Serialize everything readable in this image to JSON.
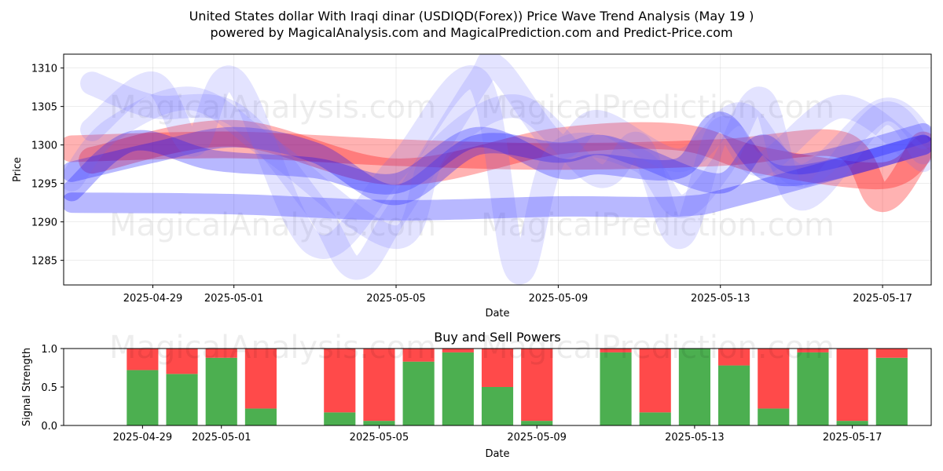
{
  "title_line1": "United States dollar With Iraqi dinar (USDIQD(Forex)) Price Wave Trend Analysis (May 19 )",
  "title_line2": "powered by MagicalAnalysis.com and MagicalPrediction.com and Predict-Price.com",
  "watermarks": [
    "MagicalAnalysis.com",
    "MagicalPrediction.com"
  ],
  "colors": {
    "red_band": "#ff0000",
    "blue_band": "#0000ff",
    "light_blue_band": "#6666ff",
    "buy": "#4caf50",
    "sell": "#ff4a4a"
  },
  "chart_data": [
    {
      "type": "line",
      "title": "",
      "xlabel": "Date",
      "ylabel": "Price",
      "ylim": [
        1281.8,
        1311.8
      ],
      "yticks": [
        1285,
        1290,
        1295,
        1300,
        1305,
        1310
      ],
      "x_tick_labels": [
        "2025-04-29",
        "2025-05-01",
        "2025-05-05",
        "2025-05-09",
        "2025-05-13",
        "2025-05-17"
      ],
      "x_tick_days": [
        2,
        4,
        8,
        12,
        16,
        20
      ],
      "x_range_days": [
        -0.2,
        21.2
      ],
      "grid": true,
      "series": [
        {
          "name": "red-wave-1",
          "color": "red",
          "days": [
            0,
            4,
            8,
            12,
            16,
            19,
            20,
            21
          ],
          "values": [
            1299.5,
            1300.0,
            1299.0,
            1298.5,
            1299.0,
            1300.0,
            1293.0,
            1300.0
          ]
        },
        {
          "name": "red-wave-2",
          "color": "red",
          "days": [
            0.5,
            4,
            8,
            12,
            15,
            17,
            20,
            21
          ],
          "values": [
            1298.0,
            1301.5,
            1296.5,
            1300.5,
            1301.0,
            1298.0,
            1296.0,
            1299.5
          ]
        },
        {
          "name": "blue-lower-band",
          "color": "blue",
          "days": [
            0,
            4,
            8,
            12,
            15,
            16.5,
            21
          ],
          "values": [
            1292.5,
            1292.3,
            1291.5,
            1292.0,
            1292.0,
            1293.5,
            1300.0
          ]
        },
        {
          "name": "blue-main-wave",
          "color": "blue",
          "days": [
            0,
            2,
            4,
            6,
            8,
            10,
            12,
            13,
            14,
            16,
            17,
            18,
            21
          ],
          "values": [
            1296.5,
            1299.0,
            1301.0,
            1299.0,
            1293.5,
            1300.0,
            1299.0,
            1300.0,
            1298.5,
            1295.0,
            1300.0,
            1297.5,
            1301.5
          ]
        },
        {
          "name": "blue-wave-2",
          "color": "blue",
          "days": [
            0,
            1.5,
            3.5,
            6,
            8,
            10,
            12,
            13,
            15,
            16,
            17.5,
            21
          ],
          "values": [
            1294.0,
            1300.5,
            1298.0,
            1297.0,
            1295.0,
            1301.0,
            1297.0,
            1297.5,
            1297.0,
            1303.0,
            1296.0,
            1300.0
          ]
        },
        {
          "name": "blue-wave-3",
          "color": "light",
          "days": [
            0.5,
            2,
            3,
            4,
            6,
            8,
            10,
            11,
            12,
            14,
            15,
            16,
            17,
            18,
            20,
            21
          ],
          "values": [
            1302.0,
            1308.0,
            1300.0,
            1308.5,
            1287.0,
            1297.0,
            1308.5,
            1283.5,
            1299.0,
            1298.0,
            1292.0,
            1297.0,
            1306.0,
            1293.0,
            1304.0,
            1299.0
          ]
        },
        {
          "name": "blue-wave-4",
          "color": "light",
          "days": [
            0.5,
            2,
            4,
            6,
            7,
            8,
            10,
            10.5,
            12,
            13,
            15,
            16.5,
            18,
            20,
            21
          ],
          "values": [
            1308.0,
            1305.0,
            1304.0,
            1292.0,
            1284.0,
            1291.0,
            1308.0,
            1310.0,
            1300.0,
            1303.0,
            1298.0,
            1304.0,
            1296.0,
            1304.5,
            1301.0
          ]
        },
        {
          "name": "blue-wave-5",
          "color": "light",
          "days": [
            0,
            1,
            3,
            5,
            8,
            9,
            11,
            13,
            14,
            15,
            16,
            17,
            19,
            21
          ],
          "values": [
            1295.5,
            1302.0,
            1306.0,
            1299.0,
            1288.0,
            1299.0,
            1305.0,
            1296.0,
            1300.0,
            1288.0,
            1302.0,
            1297.5,
            1305.0,
            1298.0
          ]
        }
      ]
    },
    {
      "type": "bar",
      "title": "Buy and Sell Powers",
      "xlabel": "Date",
      "ylabel": "Signal Strength",
      "ylim": [
        0,
        1.0
      ],
      "yticks": [
        "0.0",
        "0.5",
        "1.0"
      ],
      "ytick_values": [
        0,
        0.5,
        1.0
      ],
      "x_tick_labels": [
        "2025-04-29",
        "2025-05-01",
        "2025-05-05",
        "2025-05-09",
        "2025-05-13",
        "2025-05-17"
      ],
      "x_tick_days": [
        2,
        4,
        8,
        12,
        16,
        20
      ],
      "x_range_days": [
        0,
        22
      ],
      "days": [
        2,
        3,
        4,
        5,
        7,
        8,
        9,
        10,
        11,
        12,
        14,
        15,
        16,
        17,
        18,
        19,
        20,
        21
      ],
      "buy": [
        0.72,
        0.67,
        0.88,
        0.22,
        0.17,
        0.06,
        0.83,
        0.95,
        0.5,
        0.06,
        0.95,
        0.17,
        1.0,
        0.78,
        0.22,
        0.95,
        0.06,
        0.88
      ]
    }
  ]
}
